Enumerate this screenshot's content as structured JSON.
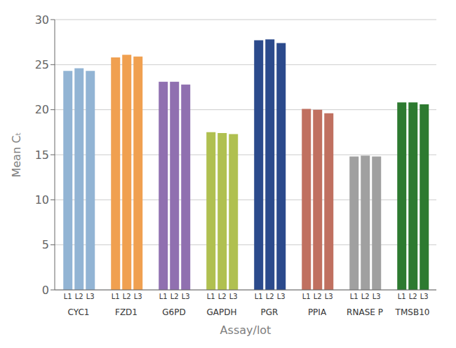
{
  "chart_data": {
    "type": "bar",
    "xlabel": "Assay/lot",
    "ylabel": "Mean Cₜ",
    "categories": [
      "CYC1",
      "FZD1",
      "G6PD",
      "GAPDH",
      "PGR",
      "PPIA",
      "RNASE P",
      "TMSB10"
    ],
    "colors": [
      "#92b4d4",
      "#f0a050",
      "#9070b0",
      "#b0c050",
      "#2b4a8c",
      "#c07060",
      "#a0a0a0",
      "#2d7a30"
    ],
    "series": [
      {
        "name": "L1",
        "values": [
          24.3,
          25.8,
          23.1,
          17.5,
          27.7,
          20.1,
          14.8,
          20.8
        ]
      },
      {
        "name": "L2",
        "values": [
          24.6,
          26.1,
          23.1,
          17.4,
          27.8,
          20.0,
          14.9,
          20.8
        ]
      },
      {
        "name": "L3",
        "values": [
          24.3,
          25.9,
          22.8,
          17.3,
          27.4,
          19.6,
          14.8,
          20.6
        ]
      }
    ],
    "ylim": [
      0,
      30
    ],
    "yticks": [
      0,
      5,
      10,
      15,
      20,
      25,
      30
    ],
    "grid": true
  }
}
